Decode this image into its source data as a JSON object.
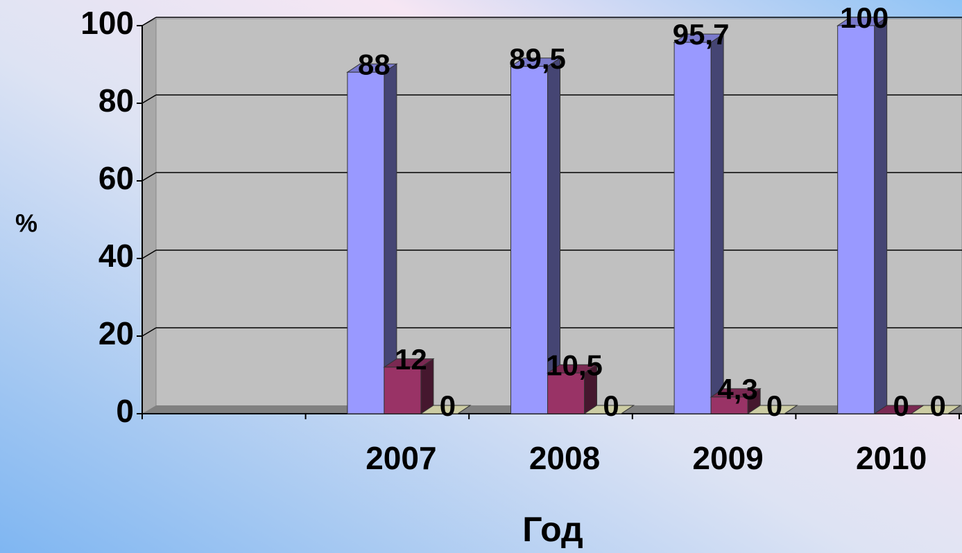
{
  "chart_data": {
    "type": "bar3d",
    "y_label": "%",
    "x_label": "Год",
    "categories": [
      null,
      "2007",
      "2008",
      "2009",
      "2010"
    ],
    "series": [
      {
        "color": "#9999ff",
        "values": [
          null,
          88,
          89.5,
          95.7,
          100
        ],
        "value_labels": [
          null,
          "88",
          "89,5",
          "95,7",
          "100"
        ]
      },
      {
        "color": "#993366",
        "values": [
          null,
          12,
          10.5,
          4.3,
          0
        ],
        "value_labels": [
          null,
          "12",
          "10,5",
          "4,3",
          "0"
        ]
      },
      {
        "color": "#ffffcc",
        "values": [
          null,
          0,
          0,
          0,
          0
        ]
      }
    ],
    "ylim": [
      0,
      100
    ],
    "yticks": [
      0,
      20,
      40,
      60,
      80,
      100
    ],
    "grid": true
  }
}
